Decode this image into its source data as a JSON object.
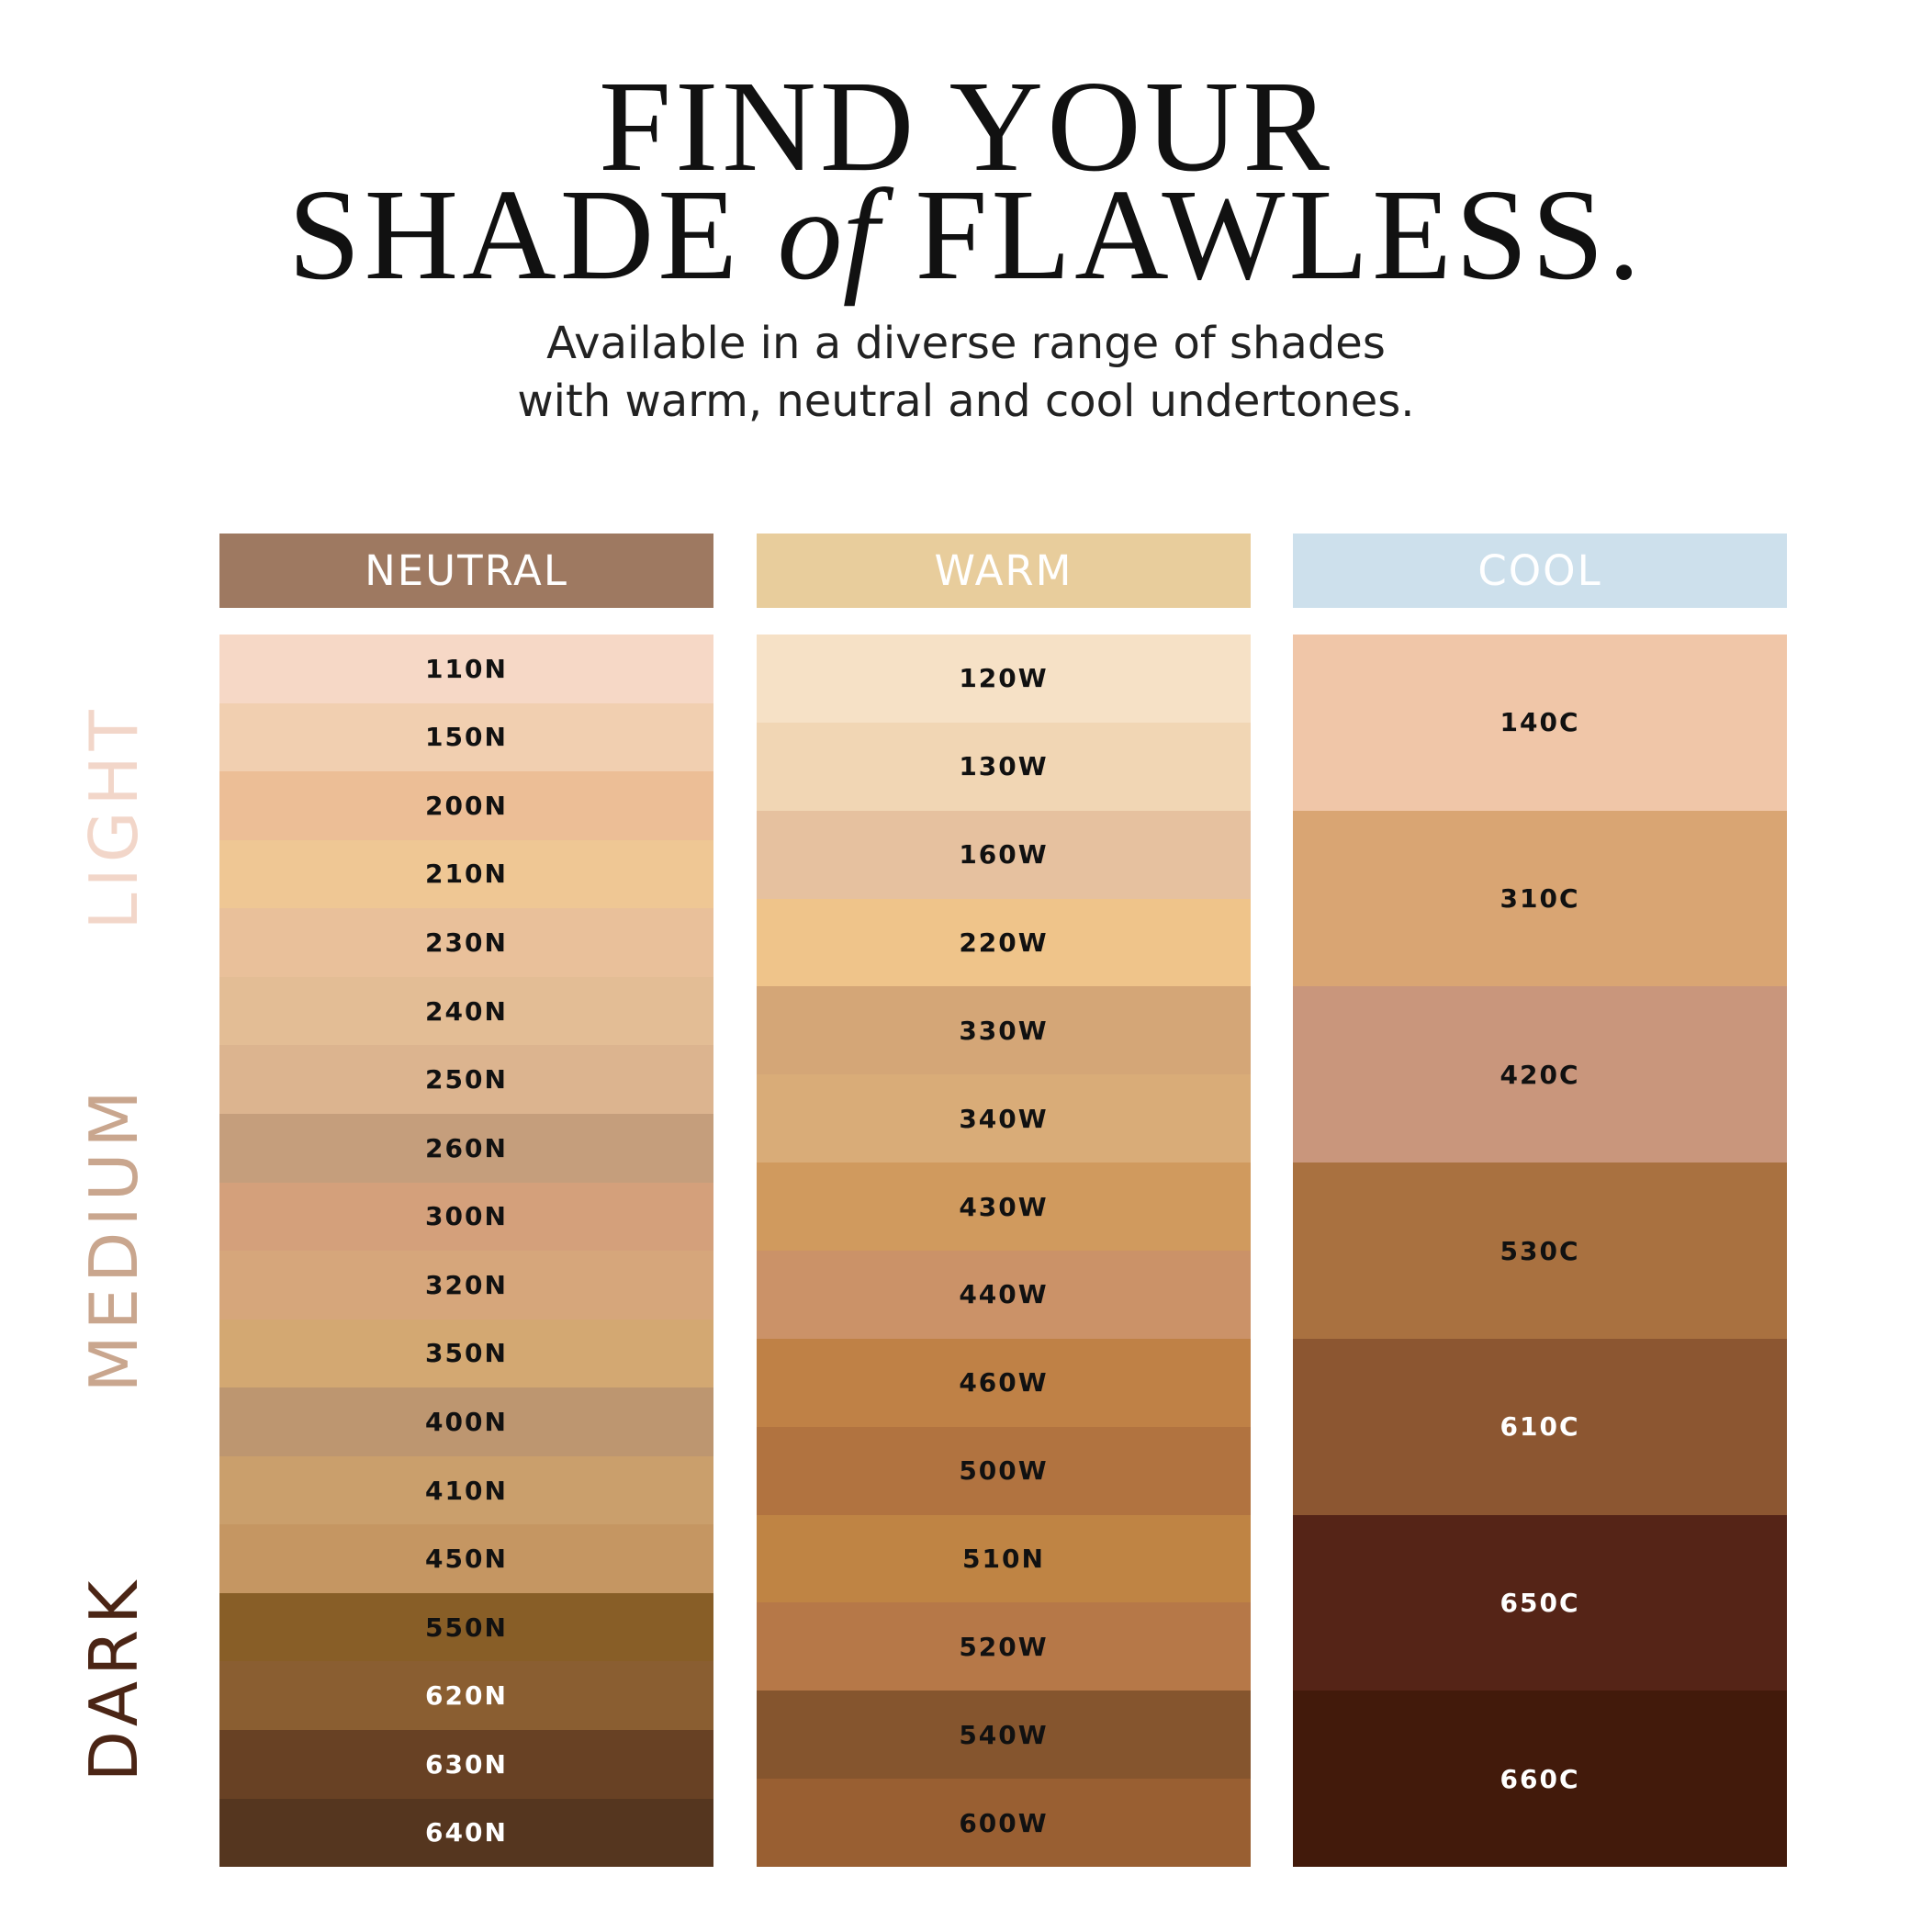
{
  "title": {
    "line1": "FIND YOUR",
    "line2_a": "SHADE ",
    "line2_b": "of",
    "line2_c": " FLAWLESS."
  },
  "subtitle": {
    "line1": "Available in a diverse range of shades",
    "line2": "with warm, neutral and cool undertones."
  },
  "depth_labels": [
    {
      "label": "LIGHT",
      "color": "#f2d6c9"
    },
    {
      "label": "MEDIUM",
      "color": "#c9a68e"
    },
    {
      "label": "DARK",
      "color": "#4b2515"
    }
  ],
  "columns": [
    {
      "label": "NEUTRAL",
      "color": "#9e7961",
      "shades": [
        {
          "name": "110N",
          "color": "#f6d8c6",
          "text": "#111"
        },
        {
          "name": "150N",
          "color": "#f1cfb0",
          "text": "#111"
        },
        {
          "name": "200N",
          "color": "#ecbe96",
          "text": "#111"
        },
        {
          "name": "210N",
          "color": "#efc794",
          "text": "#111"
        },
        {
          "name": "230N",
          "color": "#e9c09a",
          "text": "#111"
        },
        {
          "name": "240N",
          "color": "#e3bd95",
          "text": "#111"
        },
        {
          "name": "250N",
          "color": "#dcb48f",
          "text": "#111"
        },
        {
          "name": "260N",
          "color": "#c59e7c",
          "text": "#111"
        },
        {
          "name": "300N",
          "color": "#d4a07b",
          "text": "#111"
        },
        {
          "name": "320N",
          "color": "#d6a67b",
          "text": "#111"
        },
        {
          "name": "350N",
          "color": "#d3a872",
          "text": "#111"
        },
        {
          "name": "400N",
          "color": "#bd9670",
          "text": "#111"
        },
        {
          "name": "410N",
          "color": "#ca9f6c",
          "text": "#111"
        },
        {
          "name": "450N",
          "color": "#c59662",
          "text": "#111"
        },
        {
          "name": "550N",
          "color": "#885e27",
          "text": "#111"
        },
        {
          "name": "620N",
          "color": "#8a5e31",
          "text": "#fff"
        },
        {
          "name": "630N",
          "color": "#684124",
          "text": "#fff"
        },
        {
          "name": "640N",
          "color": "#55361f",
          "text": "#fff"
        }
      ]
    },
    {
      "label": "WARM",
      "color": "#e8cd9c",
      "shades": [
        {
          "name": "120W",
          "color": "#f6e1c6",
          "text": "#111"
        },
        {
          "name": "130W",
          "color": "#f1d6b4",
          "text": "#111"
        },
        {
          "name": "160W",
          "color": "#e6c19f",
          "text": "#111"
        },
        {
          "name": "220W",
          "color": "#efc48a",
          "text": "#111"
        },
        {
          "name": "330W",
          "color": "#d4a677",
          "text": "#111"
        },
        {
          "name": "340W",
          "color": "#d9ac78",
          "text": "#111"
        },
        {
          "name": "430W",
          "color": "#d09a5e",
          "text": "#111"
        },
        {
          "name": "440W",
          "color": "#cb9268",
          "text": "#111"
        },
        {
          "name": "460W",
          "color": "#bf8146",
          "text": "#111"
        },
        {
          "name": "500W",
          "color": "#b17340",
          "text": "#111"
        },
        {
          "name": "510N",
          "color": "#bf8444",
          "text": "#111"
        },
        {
          "name": "520W",
          "color": "#b67848",
          "text": "#111"
        },
        {
          "name": "540W",
          "color": "#85552e",
          "text": "#111"
        },
        {
          "name": "600W",
          "color": "#995f32",
          "text": "#111"
        }
      ]
    },
    {
      "label": "COOL",
      "color": "#cde0ec",
      "shades": [
        {
          "name": "140C",
          "color": "#f0c6a8",
          "text": "#111"
        },
        {
          "name": "310C",
          "color": "#d9a573",
          "text": "#111"
        },
        {
          "name": "420C",
          "color": "#c9967c",
          "text": "#111"
        },
        {
          "name": "530C",
          "color": "#a97140",
          "text": "#111"
        },
        {
          "name": "610C",
          "color": "#8c5631",
          "text": "#fff"
        },
        {
          "name": "650C",
          "color": "#552417",
          "text": "#fff"
        },
        {
          "name": "660C",
          "color": "#421a0b",
          "text": "#fff"
        }
      ]
    }
  ]
}
